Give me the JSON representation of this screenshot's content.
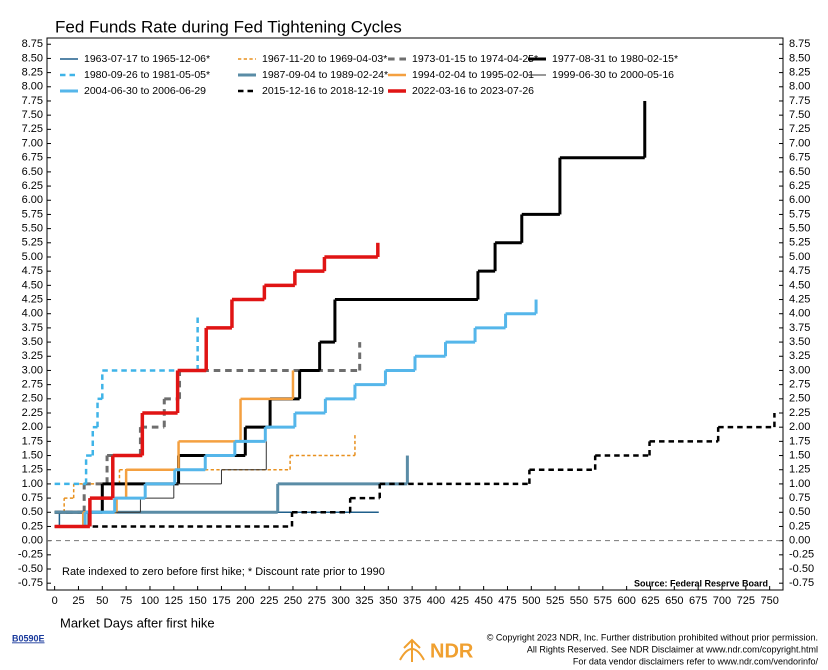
{
  "chart_data": {
    "type": "step",
    "title": "Fed Funds Rate during Fed Tightening Cycles",
    "x_label": "Market Days after first hike",
    "annotation": "Rate indexed to zero before first hike; * Discount rate prior to 1990",
    "source": "Source: Federal Reserve Board",
    "xlim": [
      -8,
      764
    ],
    "ylim": [
      -0.87,
      8.86
    ],
    "xticks": [
      0,
      25,
      50,
      75,
      100,
      125,
      150,
      175,
      200,
      225,
      250,
      275,
      300,
      325,
      350,
      375,
      400,
      425,
      450,
      475,
      500,
      525,
      550,
      575,
      600,
      625,
      650,
      675,
      700,
      725,
      750
    ],
    "yticks": [
      {
        "value": 8.75,
        "label": "8.75"
      },
      {
        "value": 8.5,
        "label": "8.50"
      },
      {
        "value": 8.25,
        "label": "8.25"
      },
      {
        "value": 8,
        "label": "8.00"
      },
      {
        "value": 7.75,
        "label": "7.75"
      },
      {
        "value": 7.5,
        "label": "7.50"
      },
      {
        "value": 7.25,
        "label": "7.25"
      },
      {
        "value": 7,
        "label": "7.00"
      },
      {
        "value": 6.75,
        "label": "6.75"
      },
      {
        "value": 6.5,
        "label": "6.50"
      },
      {
        "value": 6.25,
        "label": "6.25"
      },
      {
        "value": 6,
        "label": "6.00"
      },
      {
        "value": 5.75,
        "label": "5.75"
      },
      {
        "value": 5.5,
        "label": "5.50"
      },
      {
        "value": 5.25,
        "label": "5.25"
      },
      {
        "value": 5,
        "label": "5.00"
      },
      {
        "value": 4.75,
        "label": "4.75"
      },
      {
        "value": 4.5,
        "label": "4.50"
      },
      {
        "value": 4.25,
        "label": "4.25"
      },
      {
        "value": 4,
        "label": "4.00"
      },
      {
        "value": 3.75,
        "label": "3.75"
      },
      {
        "value": 3.5,
        "label": "3.50"
      },
      {
        "value": 3.25,
        "label": "3.25"
      },
      {
        "value": 3,
        "label": "3.00"
      },
      {
        "value": 2.75,
        "label": "2.75"
      },
      {
        "value": 2.5,
        "label": "2.50"
      },
      {
        "value": 2.25,
        "label": "2.25"
      },
      {
        "value": 2,
        "label": "2.00"
      },
      {
        "value": 1.75,
        "label": "1.75"
      },
      {
        "value": 1.5,
        "label": "1.50"
      },
      {
        "value": 1.25,
        "label": "1.25"
      },
      {
        "value": 1,
        "label": "1.00"
      },
      {
        "value": 0.75,
        "label": "0.75"
      },
      {
        "value": 0.5,
        "label": "0.50"
      },
      {
        "value": 0.25,
        "label": "0.25"
      },
      {
        "value": 0,
        "label": "0.00"
      },
      {
        "value": -0.25,
        "label": "-0.25"
      },
      {
        "value": -0.5,
        "label": "-0.50"
      },
      {
        "value": -0.75,
        "label": "-0.75"
      }
    ],
    "zero_line": 0,
    "series": [
      {
        "name": "1963-07-17 to 1965-12-06*",
        "color": "#1f5f8b",
        "line_style": "solid",
        "line_width": 1.5,
        "x": [
          0,
          5,
          340
        ],
        "values": [
          0.25,
          0.5,
          0.5
        ]
      },
      {
        "name": "1967-11-20 to 1969-04-03*",
        "color": "#e8901e",
        "line_style": "dashed",
        "line_width": 1.5,
        "x": [
          0,
          10,
          20,
          68,
          247,
          315
        ],
        "values": [
          0.5,
          0.75,
          1.0,
          1.25,
          1.5,
          1.9
        ]
      },
      {
        "name": "1973-01-15 to 1974-04-25*",
        "color": "#6e6e6e",
        "line_style": "dashed",
        "line_width": 3,
        "x": [
          0,
          31,
          55,
          90,
          115,
          131,
          320
        ],
        "values": [
          0.5,
          1.0,
          1.5,
          2.0,
          2.5,
          3.0,
          3.5
        ]
      },
      {
        "name": "1977-08-31 to 1980-02-15*",
        "color": "#000000",
        "line_style": "solid",
        "line_width": 3,
        "x": [
          0,
          50,
          130,
          200,
          226,
          257,
          278,
          294,
          444,
          462,
          490,
          530,
          619
        ],
        "values": [
          0.5,
          1.0,
          1.5,
          2.0,
          2.5,
          3.0,
          3.5,
          4.25,
          4.75,
          5.25,
          5.75,
          6.75,
          7.75
        ]
      },
      {
        "name": "1980-09-26 to 1981-05-05*",
        "color": "#3fb4e8",
        "line_style": "dashed",
        "line_width": 2.5,
        "x": [
          0,
          33,
          40,
          45,
          50,
          150
        ],
        "values": [
          1.0,
          1.5,
          2.0,
          2.5,
          3.0,
          4.0
        ]
      },
      {
        "name": "1987-09-04 to 1989-02-24*",
        "color": "#5a8ca6",
        "line_style": "solid",
        "line_width": 3,
        "x": [
          0,
          234,
          370
        ],
        "values": [
          0.5,
          1.0,
          1.5
        ]
      },
      {
        "name": "1994-02-04 to 1995-02-01",
        "color": "#f4a040",
        "line_style": "solid",
        "line_width": 2.5,
        "x": [
          0,
          30,
          65,
          75,
          130,
          195,
          250
        ],
        "values": [
          0.25,
          0.5,
          0.75,
          1.25,
          1.75,
          2.5,
          3.0
        ]
      },
      {
        "name": "1999-06-30 to 2000-05-16",
        "color": "#333333",
        "line_style": "solid",
        "line_width": 1,
        "x": [
          0,
          35,
          90,
          125,
          175,
          222
        ],
        "values": [
          0.25,
          0.5,
          0.75,
          1.0,
          1.25,
          1.75
        ]
      },
      {
        "name": "2004-06-30 to 2006-06-29",
        "color": "#55b6ea",
        "line_style": "solid",
        "line_width": 3,
        "x": [
          0,
          32,
          63,
          95,
          126,
          158,
          189,
          221,
          252,
          284,
          315,
          347,
          378,
          410,
          441,
          473,
          505
        ],
        "values": [
          0.25,
          0.5,
          0.75,
          1.0,
          1.25,
          1.5,
          1.75,
          2.0,
          2.25,
          2.5,
          2.75,
          3.0,
          3.25,
          3.5,
          3.75,
          4.0,
          4.25
        ]
      },
      {
        "name": "2015-12-16 to 2018-12-19",
        "color": "#000000",
        "line_style": "dashed",
        "line_width": 2.5,
        "x": [
          0,
          249,
          310,
          341,
          498,
          567,
          624,
          696,
          755
        ],
        "values": [
          0.25,
          0.5,
          0.75,
          1.0,
          1.25,
          1.5,
          1.75,
          2.0,
          2.25
        ]
      },
      {
        "name": "2022-03-16 to 2023-07-26",
        "color": "#e01414",
        "line_style": "solid",
        "line_width": 3.5,
        "x": [
          0,
          37,
          61,
          92,
          129,
          159,
          186,
          220,
          252,
          283,
          339
        ],
        "values": [
          0.25,
          0.75,
          1.5,
          2.25,
          3.0,
          3.75,
          4.25,
          4.5,
          4.75,
          5.0,
          5.25
        ]
      }
    ]
  },
  "footer": {
    "code": "B0590E",
    "logo": "NDR",
    "copyright": [
      "© Copyright 2023 NDR, Inc. Further distribution prohibited without prior permission.",
      "All Rights Reserved. See NDR Disclaimer at www.ndr.com/copyright.html",
      "For data vendor disclaimers refer to www.ndr.com/vendorinfo/"
    ]
  }
}
